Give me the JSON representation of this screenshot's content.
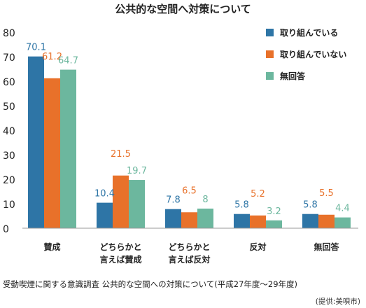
{
  "chart_data": {
    "type": "bar",
    "title": "公共的な空間へ対策について",
    "categories": [
      [
        "賛成"
      ],
      [
        "どちらかと",
        "言えば賛成"
      ],
      [
        "どちらかと",
        "言えば反対"
      ],
      [
        "反対"
      ],
      [
        "無回答"
      ]
    ],
    "series": [
      {
        "name": "取り組んでいる",
        "color": "#2e75a6",
        "values": [
          70.1,
          10.4,
          7.8,
          5.8,
          5.8
        ]
      },
      {
        "name": "取り組んでいない",
        "color": "#e8712a",
        "values": [
          61.2,
          21.5,
          6.5,
          5.2,
          5.5
        ]
      },
      {
        "name": "無回答",
        "color": "#6cb79e",
        "values": [
          64.7,
          19.7,
          8,
          3.2,
          4.4
        ]
      }
    ],
    "value_labels": [
      [
        "70.1",
        "10.4",
        "7.8",
        "5.8",
        "5.8"
      ],
      [
        "61.2",
        "21.5",
        "6.5",
        "5.2",
        "5.5"
      ],
      [
        "64.7",
        "19.7",
        "8",
        "3.2",
        "4.4"
      ]
    ],
    "ylim": [
      0,
      80
    ],
    "yticks": [
      0,
      10,
      20,
      30,
      40,
      50,
      60,
      70,
      80
    ],
    "grid": false,
    "legend_position": "top-right"
  },
  "caption": "受動喫煙に関する意識調査 公共的な空間への対策について(平成27年度〜29年度)",
  "credit": "(提供:美唄市)"
}
